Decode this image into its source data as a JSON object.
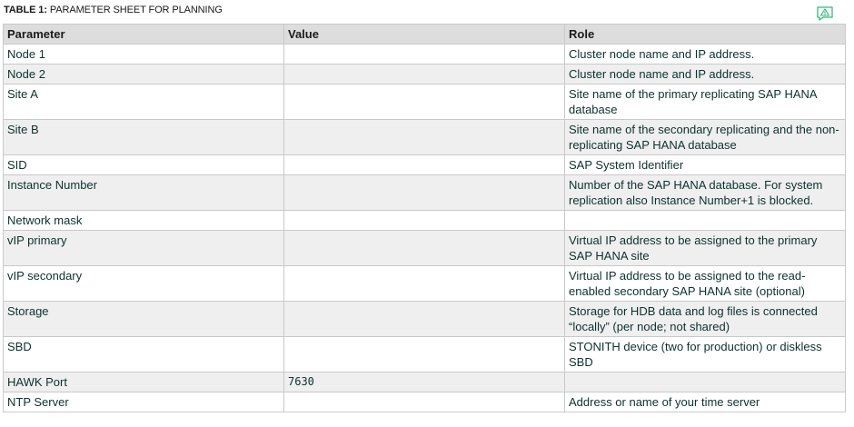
{
  "caption": {
    "lead": "TABLE 1:",
    "text": " PARAMETER SHEET FOR PLANNING"
  },
  "icons": {
    "feedback": "feedback-warning-icon",
    "feedback_color": "#30ba78"
  },
  "table": {
    "headers": [
      "Parameter",
      "Value",
      "Role"
    ],
    "rows": [
      {
        "parameter": "Node 1",
        "value": "",
        "role": "Cluster node name and IP address."
      },
      {
        "parameter": "Node 2",
        "value": "",
        "role": "Cluster node name and IP address."
      },
      {
        "parameter": "Site A",
        "value": "",
        "role": "Site name of the primary replicating SAP HANA database"
      },
      {
        "parameter": "Site B",
        "value": "",
        "role": "Site name of the secondary replicating and the non-replicating SAP HANA database"
      },
      {
        "parameter": "SID",
        "value": "",
        "role": "SAP System Identifier"
      },
      {
        "parameter": "Instance Number",
        "value": "",
        "role": "Number of the SAP HANA database. For system replication also Instance Number+1 is blocked."
      },
      {
        "parameter": "Network mask",
        "value": "",
        "role": ""
      },
      {
        "parameter": "vIP primary",
        "value": "",
        "role": "Virtual IP address to be assigned to the primary SAP HANA site"
      },
      {
        "parameter": "vIP secondary",
        "value": "",
        "role": "Virtual IP address to be assigned to the read-enabled secondary SAP HANA site (optional)"
      },
      {
        "parameter": "Storage",
        "value": "",
        "role": "Storage for HDB data and log files is connected “locally” (per node; not shared)"
      },
      {
        "parameter": "SBD",
        "value": "",
        "role": "STONITH device (two for production) or diskless SBD"
      },
      {
        "parameter": "HAWK Port",
        "value": "7630",
        "role": ""
      },
      {
        "parameter": "NTP Server",
        "value": "",
        "role": "Address or name of your time server"
      }
    ]
  }
}
